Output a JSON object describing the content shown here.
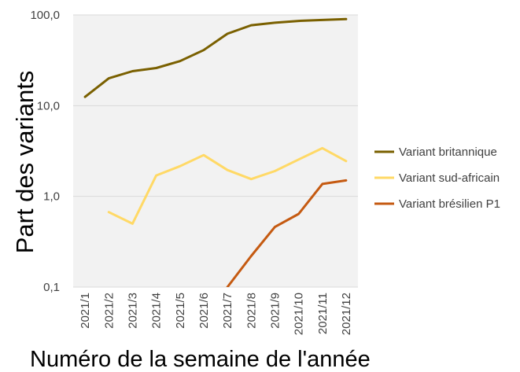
{
  "chart_data": {
    "type": "line",
    "title": "",
    "xlabel": "Numéro de la semaine de l'année",
    "ylabel": "Part des variants",
    "yscale": "log",
    "ylim": [
      0.1,
      100
    ],
    "y_tick_labels": [
      "0,1",
      "1,0",
      "10,0",
      "100,0"
    ],
    "y_tick_values": [
      0.1,
      1,
      10,
      100
    ],
    "grid": "horizontal",
    "legend_position": "right",
    "categories": [
      "2021/1",
      "2021/2",
      "2021/3",
      "2021/4",
      "2021/5",
      "2021/6",
      "2021/7",
      "2021/8",
      "2021/9",
      "2021/10",
      "2021/11",
      "2021/12"
    ],
    "series": [
      {
        "name": "Variant britannique",
        "color": "#7a6000",
        "values": [
          12.5,
          20,
          24,
          26,
          31,
          41,
          62,
          77,
          82,
          86,
          88,
          90
        ]
      },
      {
        "name": "Variant sud-africain",
        "color": "#ffd966",
        "values": [
          null,
          0.67,
          0.5,
          1.7,
          2.15,
          2.85,
          1.95,
          1.55,
          1.9,
          2.55,
          3.4,
          2.45
        ]
      },
      {
        "name": "Variant brésilien P1",
        "color": "#c55a11",
        "values": [
          null,
          null,
          null,
          null,
          null,
          null,
          0.1,
          0.22,
          0.46,
          0.64,
          1.37,
          1.5
        ]
      }
    ]
  }
}
